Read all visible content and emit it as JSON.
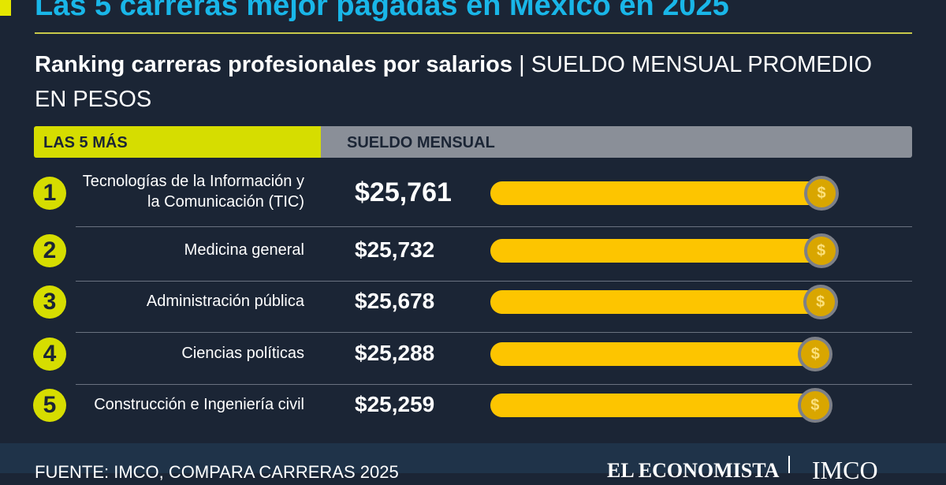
{
  "chart_data": {
    "type": "bar",
    "title": "Las 5 carreras mejor pagadas en México en 2025",
    "subtitle_bold": "Ranking carreras profesionales por salarios",
    "subtitle_separator": "|",
    "subtitle_rest": "SUELDO MENSUAL PROMEDIO EN PESOS",
    "header_left": "LAS 5 MÁS",
    "header_right": "SUELDO MENSUAL",
    "ranks": [
      "1",
      "2",
      "3",
      "4",
      "5"
    ],
    "categories": [
      "Tecnologías de la Información y la Comunicación (TIC)",
      "Medicina general",
      "Administración pública",
      "Ciencias políticas",
      "Construcción e Ingeniería civil"
    ],
    "values": [
      25761,
      25732,
      25678,
      25288,
      25259
    ],
    "value_labels": [
      "$25,761",
      "$25,732",
      "$25,678",
      "$25,288",
      "$25,259"
    ],
    "color": "#fdc500",
    "source": "FUENTE: IMCO, COMPARA CARRERAS 2025",
    "logos": [
      "EL ECONOMISTA",
      "IMCO"
    ]
  }
}
